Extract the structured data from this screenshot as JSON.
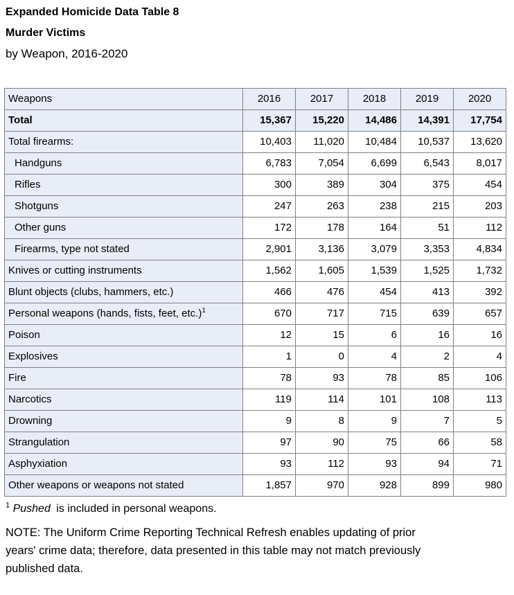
{
  "title": {
    "line1": "Expanded Homicide Data Table 8",
    "line2": "Murder Victims",
    "line3": "by Weapon, 2016-2020"
  },
  "table": {
    "header": {
      "label": "Weapons",
      "years": [
        "2016",
        "2017",
        "2018",
        "2019",
        "2020"
      ]
    },
    "rows": [
      {
        "label": "Total",
        "bold": true,
        "indent": false,
        "values": [
          "15,367",
          "15,220",
          "14,486",
          "14,391",
          "17,754"
        ]
      },
      {
        "label": "Total firearms:",
        "bold": false,
        "indent": false,
        "values": [
          "10,403",
          "11,020",
          "10,484",
          "10,537",
          "13,620"
        ]
      },
      {
        "label": "Handguns",
        "bold": false,
        "indent": true,
        "values": [
          "6,783",
          "7,054",
          "6,699",
          "6,543",
          "8,017"
        ]
      },
      {
        "label": "Rifles",
        "bold": false,
        "indent": true,
        "values": [
          "300",
          "389",
          "304",
          "375",
          "454"
        ]
      },
      {
        "label": "Shotguns",
        "bold": false,
        "indent": true,
        "values": [
          "247",
          "263",
          "238",
          "215",
          "203"
        ]
      },
      {
        "label": "Other guns",
        "bold": false,
        "indent": true,
        "values": [
          "172",
          "178",
          "164",
          "51",
          "112"
        ]
      },
      {
        "label": "Firearms, type not stated",
        "bold": false,
        "indent": true,
        "values": [
          "2,901",
          "3,136",
          "3,079",
          "3,353",
          "4,834"
        ]
      },
      {
        "label": "Knives or cutting instruments",
        "bold": false,
        "indent": false,
        "values": [
          "1,562",
          "1,605",
          "1,539",
          "1,525",
          "1,732"
        ]
      },
      {
        "label": "Blunt objects (clubs, hammers, etc.)",
        "bold": false,
        "indent": false,
        "values": [
          "466",
          "476",
          "454",
          "413",
          "392"
        ]
      },
      {
        "label": "Personal weapons (hands, fists, feet, etc.)",
        "sup": "1",
        "bold": false,
        "indent": false,
        "values": [
          "670",
          "717",
          "715",
          "639",
          "657"
        ]
      },
      {
        "label": "Poison",
        "bold": false,
        "indent": false,
        "values": [
          "12",
          "15",
          "6",
          "16",
          "16"
        ]
      },
      {
        "label": "Explosives",
        "bold": false,
        "indent": false,
        "values": [
          "1",
          "0",
          "4",
          "2",
          "4"
        ]
      },
      {
        "label": "Fire",
        "bold": false,
        "indent": false,
        "values": [
          "78",
          "93",
          "78",
          "85",
          "106"
        ]
      },
      {
        "label": "Narcotics",
        "bold": false,
        "indent": false,
        "values": [
          "119",
          "114",
          "101",
          "108",
          "113"
        ]
      },
      {
        "label": "Drowning",
        "bold": false,
        "indent": false,
        "values": [
          "9",
          "8",
          "9",
          "7",
          "5"
        ]
      },
      {
        "label": "Strangulation",
        "bold": false,
        "indent": false,
        "values": [
          "97",
          "90",
          "75",
          "66",
          "58"
        ]
      },
      {
        "label": "Asphyxiation",
        "bold": false,
        "indent": false,
        "values": [
          "93",
          "112",
          "93",
          "94",
          "71"
        ]
      },
      {
        "label": "Other weapons or weapons not stated",
        "bold": false,
        "indent": false,
        "values": [
          "1,857",
          "970",
          "928",
          "899",
          "980"
        ]
      }
    ]
  },
  "footnotes": {
    "sup": "1",
    "italic": "Pushed",
    "rest": " is included in personal weapons.",
    "note_lines": [
      "NOTE: The Uniform Crime Reporting Technical Refresh enables updating of prior",
      "years' crime data; therefore, data presented in this table may not match previously",
      "published data."
    ]
  },
  "colors": {
    "shade": "#E9EDF7",
    "border": "#808080",
    "text": "#000000"
  }
}
